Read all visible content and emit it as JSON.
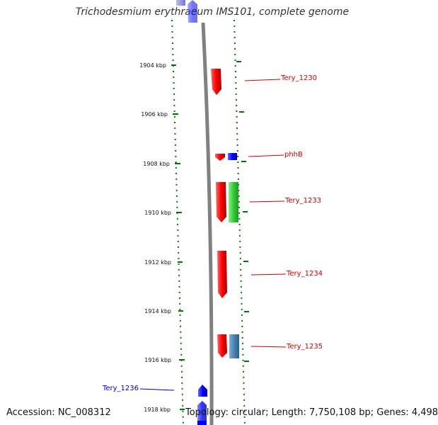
{
  "title": "Trichodesmium erythraeum IMS101, complete genome",
  "footer": {
    "accession": "Accession: NC_008312",
    "stats": "Topology: circular; Length: 7,750,108 bp; Genes: 4,498"
  },
  "ticks": [
    "1904 kbp",
    "1906 kbp",
    "1908 kbp",
    "1910 kbp",
    "1912 kbp",
    "1914 kbp",
    "1916 kbp",
    "1918 kbp"
  ],
  "gene_labels": [
    {
      "text": "Tery_1230",
      "color": "#cc0000"
    },
    {
      "text": "phhB",
      "color": "#cc0000"
    },
    {
      "text": "Tery_1233",
      "color": "#cc0000"
    },
    {
      "text": "Tery_1234",
      "color": "#cc0000"
    },
    {
      "text": "Tery_1235",
      "color": "#cc0000"
    },
    {
      "text": "Tery_1236",
      "color": "#0000cc"
    }
  ],
  "colors": {
    "forward_gene": "#ff0000",
    "reverse_gene": "#0000ff",
    "green_feature": "#33cc33",
    "steel_feature": "#4682b4",
    "backbone": "#808080",
    "tick_dots": "#007700"
  }
}
